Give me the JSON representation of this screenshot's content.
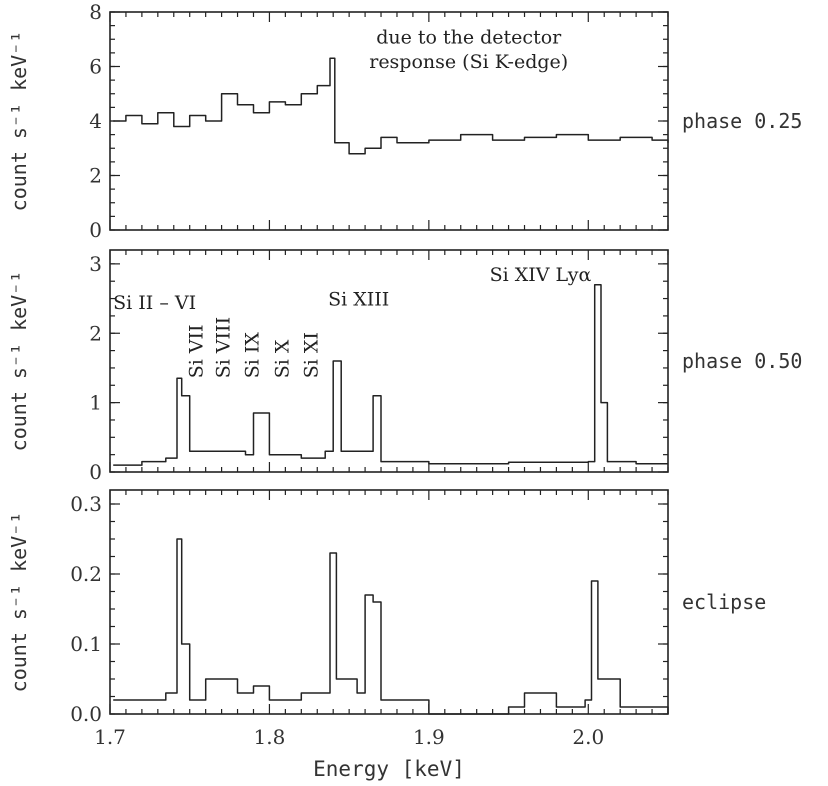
{
  "chart_data": {
    "type": "line",
    "xlabel": "Energy [keV]",
    "xlim": [
      1.7,
      2.05
    ],
    "xticks": [
      1.7,
      1.8,
      1.9,
      2.0
    ],
    "xtick_labels": [
      "1.7",
      "1.8",
      "1.9",
      "2.0"
    ],
    "panels": [
      {
        "label": "phase 0.25",
        "ylabel": "count s⁻¹ keV⁻¹",
        "ylim": [
          0,
          8
        ],
        "yticks": [
          0,
          2,
          4,
          6,
          8
        ],
        "ytick_labels": [
          "0",
          "2",
          "4",
          "6",
          "8"
        ],
        "annotations": [
          {
            "text": "due to the detector",
            "x": 1.925,
            "y": 6.85
          },
          {
            "text": "response (Si K-edge)",
            "x": 1.925,
            "y": 5.95
          }
        ],
        "x": [
          1.702,
          1.71,
          1.72,
          1.73,
          1.74,
          1.75,
          1.76,
          1.77,
          1.78,
          1.79,
          1.8,
          1.81,
          1.82,
          1.83,
          1.838,
          1.841,
          1.85,
          1.86,
          1.87,
          1.88,
          1.9,
          1.92,
          1.94,
          1.96,
          1.98,
          2.0,
          2.02,
          2.04,
          2.05
        ],
        "y": [
          4.0,
          4.2,
          3.9,
          4.3,
          3.8,
          4.2,
          4.0,
          5.0,
          4.6,
          4.3,
          4.7,
          4.6,
          5.0,
          5.3,
          6.3,
          3.2,
          2.8,
          3.0,
          3.4,
          3.2,
          3.3,
          3.5,
          3.3,
          3.4,
          3.5,
          3.3,
          3.4,
          3.3,
          3.2
        ]
      },
      {
        "label": "phase 0.50",
        "ylabel": "count s⁻¹ keV⁻¹",
        "ylim": [
          0,
          3.2
        ],
        "yticks": [
          0,
          1,
          2,
          3
        ],
        "ytick_labels": [
          "0",
          "1",
          "2",
          "3"
        ],
        "annotations": [
          {
            "text": "Si II – VI",
            "x": 1.728,
            "y": 2.35
          },
          {
            "text": "Si XIII",
            "x": 1.856,
            "y": 2.4
          },
          {
            "text": "Si XIV Lyα",
            "x": 1.97,
            "y": 2.75
          }
        ],
        "rotated_annotations": [
          {
            "text": "Si VII",
            "x": 1.758,
            "y": 1.35
          },
          {
            "text": "Si VIII",
            "x": 1.775,
            "y": 1.35
          },
          {
            "text": "Si IX",
            "x": 1.793,
            "y": 1.35
          },
          {
            "text": "Si X",
            "x": 1.812,
            "y": 1.35
          },
          {
            "text": "Si XI",
            "x": 1.83,
            "y": 1.35
          }
        ],
        "x": [
          1.702,
          1.72,
          1.735,
          1.742,
          1.745,
          1.75,
          1.77,
          1.785,
          1.79,
          1.8,
          1.82,
          1.835,
          1.84,
          1.845,
          1.86,
          1.865,
          1.87,
          1.9,
          1.95,
          2.0,
          2.004,
          2.008,
          2.012,
          2.03,
          2.05
        ],
        "y": [
          0.1,
          0.15,
          0.2,
          1.35,
          1.1,
          0.3,
          0.3,
          0.25,
          0.85,
          0.25,
          0.2,
          0.3,
          1.6,
          0.3,
          0.3,
          1.1,
          0.15,
          0.12,
          0.14,
          0.15,
          2.7,
          1.0,
          0.15,
          0.12,
          0.12
        ]
      },
      {
        "label": "eclipse",
        "ylabel": "count s⁻¹ keV⁻¹",
        "ylim": [
          0,
          0.32
        ],
        "yticks": [
          0.0,
          0.1,
          0.2,
          0.3
        ],
        "ytick_labels": [
          "0.0",
          "0.1",
          "0.2",
          "0.3"
        ],
        "annotations": [],
        "x": [
          1.702,
          1.72,
          1.735,
          1.742,
          1.745,
          1.75,
          1.76,
          1.78,
          1.79,
          1.8,
          1.82,
          1.835,
          1.838,
          1.842,
          1.855,
          1.86,
          1.865,
          1.87,
          1.9,
          1.95,
          1.96,
          1.98,
          1.998,
          2.002,
          2.006,
          2.02,
          2.05
        ],
        "y": [
          0.02,
          0.02,
          0.03,
          0.25,
          0.1,
          0.02,
          0.05,
          0.03,
          0.04,
          0.02,
          0.03,
          0.03,
          0.23,
          0.05,
          0.03,
          0.17,
          0.16,
          0.02,
          0.0,
          0.01,
          0.03,
          0.01,
          0.02,
          0.19,
          0.05,
          0.01,
          0.0
        ]
      }
    ]
  }
}
